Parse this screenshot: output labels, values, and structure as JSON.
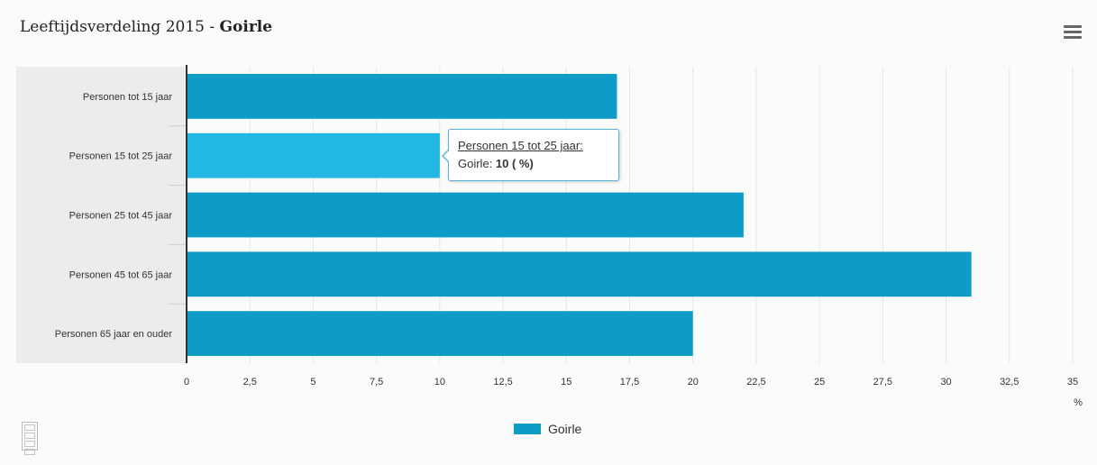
{
  "header": {
    "title_prefix": "Leeftijdsverdeling 2015 - ",
    "title_place": "Goirle"
  },
  "icons": {
    "menu": "hamburger-menu-icon",
    "logo": "cbs-logo-icon"
  },
  "colors": {
    "bar": "#0d9cc8",
    "bar_hover": "#22b8e3",
    "category_band": "#ececec",
    "grid": "#e6e6e6",
    "axis": "#333333"
  },
  "chart_data": {
    "type": "bar",
    "orientation": "horizontal",
    "categories": [
      "Personen tot 15 jaar",
      "Personen 15 tot 25 jaar",
      "Personen 25 tot 45 jaar",
      "Personen 45 tot 65 jaar",
      "Personen 65 jaar en ouder"
    ],
    "series": [
      {
        "name": "Goirle",
        "values": [
          17,
          10,
          22,
          31,
          20
        ]
      }
    ],
    "x_ticks": [
      "0",
      "2,5",
      "5",
      "7,5",
      "10",
      "12,5",
      "15",
      "17,5",
      "20",
      "22,5",
      "25",
      "27,5",
      "30",
      "32,5",
      "35"
    ],
    "x_tick_values": [
      0,
      2.5,
      5,
      7.5,
      10,
      12.5,
      15,
      17.5,
      20,
      22.5,
      25,
      27.5,
      30,
      32.5,
      35
    ],
    "xlim": [
      0,
      35
    ],
    "xlabel": "%",
    "grid": true,
    "legend_position": "bottom-center",
    "highlighted_index": 1
  },
  "tooltip": {
    "heading": "Personen 15 tot 25 jaar:",
    "series_label": "Goirle: ",
    "value_text": "10 ( %)"
  },
  "legend": {
    "label": "Goirle"
  }
}
